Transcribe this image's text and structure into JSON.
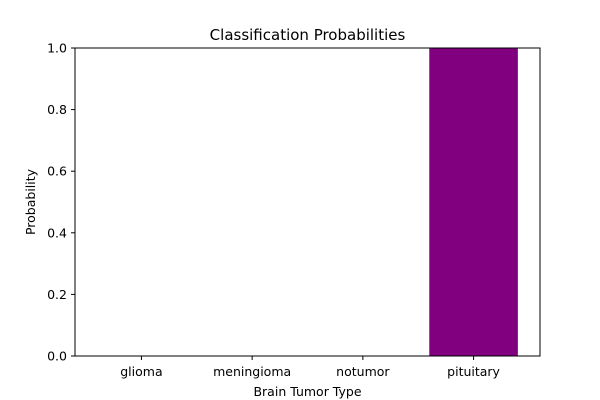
{
  "chart_data": {
    "type": "bar",
    "title": "Classification Probabilities",
    "xlabel": "Brain Tumor Type",
    "ylabel": "Probability",
    "categories": [
      "glioma",
      "meningioma",
      "notumor",
      "pituitary"
    ],
    "values": [
      0.0,
      0.0,
      0.0,
      1.0
    ],
    "ylim": [
      0,
      1.0
    ],
    "yticks": [
      "0.0",
      "0.2",
      "0.4",
      "0.6",
      "0.8",
      "1.0"
    ],
    "bar_color": "#800080",
    "grid": false,
    "legend": "none"
  }
}
